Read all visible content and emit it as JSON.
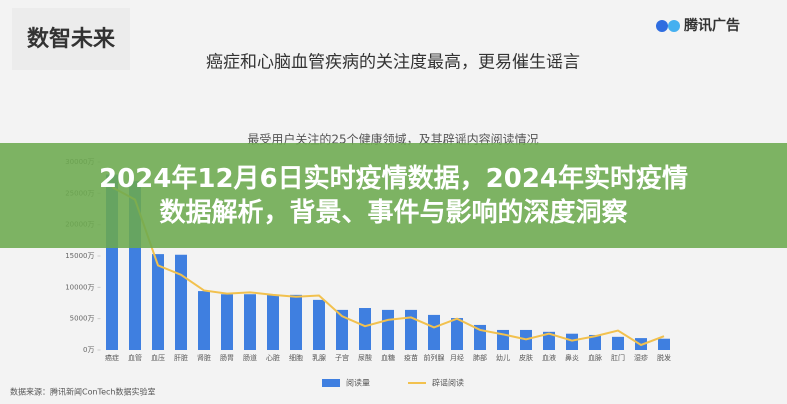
{
  "header": {
    "logo": "数智未来",
    "brand": "腾讯广告"
  },
  "banner": "2024年12月6日实时疫情数据，2024年实时疫情数据解析，背景、事件与影响的深度洞察",
  "source": "数据来源：腾讯新闻ConTech数据实验室",
  "chart_data": {
    "type": "bar",
    "title": "癌症和心脑血管疾病的关注度最高，更易催生谣言",
    "subtitle": "最受用户关注的25个健康领域，及其辟谣内容阅读情况",
    "categories": [
      "癌症",
      "血管",
      "血压",
      "肝脏",
      "肾脏",
      "肠胃",
      "肠道",
      "心脏",
      "细胞",
      "乳腺",
      "子宫",
      "尿酸",
      "血糖",
      "疫苗",
      "前列腺",
      "月经",
      "肺部",
      "幼儿",
      "皮肤",
      "血液",
      "鼻炎",
      "血脉",
      "肛门",
      "湿疹",
      "脱发"
    ],
    "series": [
      {
        "name": "阅读量",
        "type": "bar",
        "color": "#3f7fe0",
        "values": [
          28000,
          27000,
          15300,
          15200,
          9400,
          8900,
          8900,
          8800,
          8800,
          8000,
          6400,
          6700,
          6400,
          6400,
          5600,
          5100,
          4000,
          3200,
          3200,
          2900,
          2600,
          2400,
          2100,
          1900,
          1800
        ]
      },
      {
        "name": "辟谣阅读",
        "type": "line",
        "color": "#f2c14e",
        "values": [
          26000,
          24000,
          13500,
          12000,
          9500,
          9000,
          9200,
          8800,
          8500,
          8700,
          5400,
          3800,
          4800,
          5200,
          3600,
          5000,
          3200,
          2500,
          1700,
          2600,
          1500,
          2200,
          3100,
          800,
          2200
        ]
      }
    ],
    "ylim": [
      0,
      30000
    ],
    "yticks": [
      {
        "value": 0,
        "label": "0万"
      },
      {
        "value": 5000,
        "label": "5000万"
      },
      {
        "value": 10000,
        "label": "10000万"
      },
      {
        "value": 15000,
        "label": "15000万"
      },
      {
        "value": 20000,
        "label": "20000万"
      },
      {
        "value": 25000,
        "label": "25000万"
      },
      {
        "value": 30000,
        "label": "30000万"
      }
    ],
    "grid": false
  }
}
